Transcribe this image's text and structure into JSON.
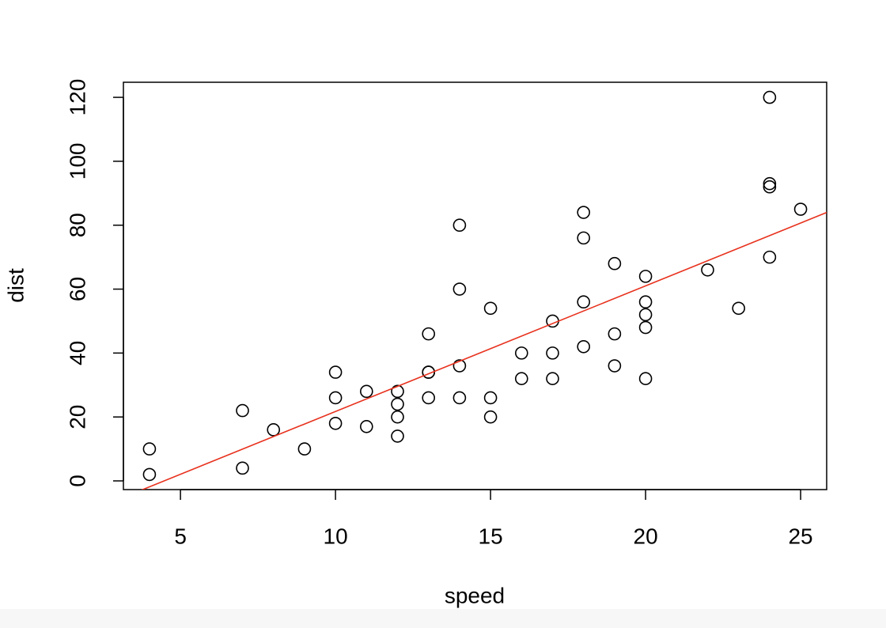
{
  "chart_data": {
    "type": "scatter",
    "x_label": "speed",
    "y_label": "dist",
    "x": [
      4,
      4,
      7,
      7,
      8,
      9,
      10,
      10,
      10,
      11,
      11,
      12,
      12,
      12,
      12,
      13,
      13,
      13,
      13,
      14,
      14,
      14,
      14,
      15,
      15,
      15,
      16,
      16,
      17,
      17,
      17,
      18,
      18,
      18,
      18,
      19,
      19,
      19,
      20,
      20,
      20,
      20,
      20,
      22,
      23,
      24,
      24,
      24,
      24,
      25
    ],
    "values": [
      2,
      10,
      4,
      22,
      16,
      10,
      18,
      26,
      34,
      17,
      28,
      14,
      20,
      24,
      28,
      26,
      34,
      34,
      46,
      26,
      36,
      60,
      80,
      20,
      26,
      54,
      32,
      40,
      32,
      40,
      50,
      42,
      56,
      76,
      84,
      36,
      46,
      68,
      32,
      48,
      52,
      56,
      64,
      66,
      54,
      70,
      92,
      93,
      120,
      85
    ],
    "color": "#000000",
    "fit": {
      "intercept": -17.58,
      "slope": 3.93,
      "color": "#e8321e"
    },
    "xlim": [
      3.16,
      25.84
    ],
    "xticks": [
      5,
      10,
      15,
      20,
      25
    ],
    "ylim": [
      -2.72,
      124.72
    ],
    "yticks": [
      0,
      20,
      40,
      60,
      80,
      100,
      120
    ]
  }
}
